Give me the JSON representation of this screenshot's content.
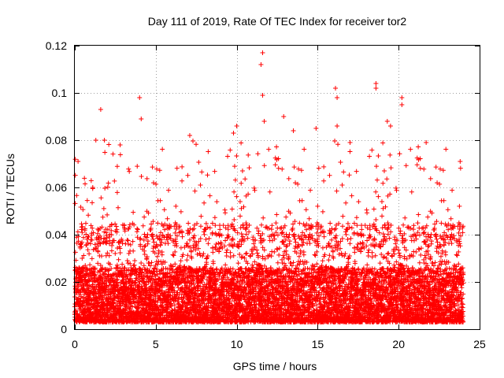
{
  "chart_data": {
    "type": "scatter",
    "title": "Day 111 of 2019, Rate Of TEC Index for receiver tor2",
    "xlabel": "GPS time / hours",
    "ylabel": "ROTI / TECUs",
    "xlim": [
      0,
      25
    ],
    "ylim": [
      0,
      0.12
    ],
    "x_ticks": [
      "0",
      "5",
      "10",
      "15",
      "20",
      "25"
    ],
    "y_ticks": [
      "0",
      "0.02",
      "0.04",
      "0.06",
      "0.08",
      "0.1",
      "0.12"
    ],
    "grid": true,
    "marker": "plus",
    "color": "#ff0000",
    "series": [
      {
        "name": "ROTI",
        "x_range": [
          0,
          24
        ],
        "sample_interval_hours": 0.0083,
        "typical_range": [
          0.003,
          0.045
        ],
        "notable_peaks": [
          {
            "x": 0.2,
            "y": 0.071
          },
          {
            "x": 1.3,
            "y": 0.08
          },
          {
            "x": 1.6,
            "y": 0.093
          },
          {
            "x": 2.8,
            "y": 0.078
          },
          {
            "x": 4.0,
            "y": 0.098
          },
          {
            "x": 4.1,
            "y": 0.089
          },
          {
            "x": 7.1,
            "y": 0.082
          },
          {
            "x": 9.8,
            "y": 0.083
          },
          {
            "x": 10.0,
            "y": 0.086
          },
          {
            "x": 11.6,
            "y": 0.117
          },
          {
            "x": 11.5,
            "y": 0.112
          },
          {
            "x": 11.6,
            "y": 0.099
          },
          {
            "x": 11.7,
            "y": 0.088
          },
          {
            "x": 12.9,
            "y": 0.09
          },
          {
            "x": 13.5,
            "y": 0.084
          },
          {
            "x": 14.9,
            "y": 0.085
          },
          {
            "x": 16.1,
            "y": 0.102
          },
          {
            "x": 16.2,
            "y": 0.098
          },
          {
            "x": 16.2,
            "y": 0.086
          },
          {
            "x": 17.0,
            "y": 0.079
          },
          {
            "x": 18.6,
            "y": 0.104
          },
          {
            "x": 18.6,
            "y": 0.102
          },
          {
            "x": 19.3,
            "y": 0.088
          },
          {
            "x": 19.5,
            "y": 0.086
          },
          {
            "x": 20.2,
            "y": 0.098
          },
          {
            "x": 20.2,
            "y": 0.095
          },
          {
            "x": 21.7,
            "y": 0.079
          },
          {
            "x": 23.8,
            "y": 0.071
          }
        ]
      }
    ]
  }
}
